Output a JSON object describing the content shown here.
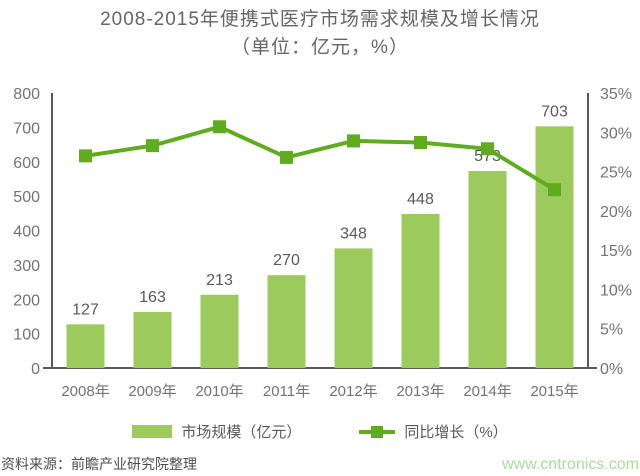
{
  "title": "2008-2015年便携式医疗市场需求规模及增长情况",
  "subtitle": "（单位：亿元，%）",
  "legend": {
    "bar_label": "市场规模（亿元）",
    "line_label": "同比增长（%）"
  },
  "footer": {
    "source": "资料来源：前瞻产业研究院整理",
    "website": "www.cntronics.com"
  },
  "colors": {
    "bar": "#9cca5d",
    "line": "#5fad1f",
    "axis": "#595959",
    "tick_text": "#737373",
    "value_label": "#595959",
    "title_text": "#666666",
    "legend_text": "#595959",
    "source_text": "#4d4d4d",
    "website_text": "#aadc9c"
  },
  "chart_data": {
    "type": "bar",
    "subtype": "bar+line combo, dual axis",
    "title": "2008-2015年便携式医疗市场需求规模及增长情况",
    "subtitle": "（单位：亿元，%）",
    "categories": [
      "2008年",
      "2009年",
      "2010年",
      "2011年",
      "2012年",
      "2013年",
      "2014年",
      "2015年"
    ],
    "series": [
      {
        "name": "市场规模（亿元）",
        "type": "bar",
        "axis": "left",
        "values": [
          127,
          163,
          213,
          270,
          348,
          448,
          573,
          703
        ],
        "value_labels": [
          "127",
          "163",
          "213",
          "270",
          "348",
          "448",
          "573",
          "703"
        ]
      },
      {
        "name": "同比增长（%）",
        "type": "line",
        "axis": "right",
        "values": [
          27.0,
          28.3,
          30.7,
          26.8,
          28.9,
          28.7,
          27.9,
          22.7
        ]
      }
    ],
    "left_axis": {
      "min": 0,
      "max": 800,
      "step": 100,
      "tick_labels": [
        "0",
        "100",
        "200",
        "300",
        "400",
        "500",
        "600",
        "700",
        "800"
      ]
    },
    "right_axis": {
      "min": 0,
      "max": 35,
      "step": 5,
      "tick_labels": [
        "0%",
        "5%",
        "10%",
        "15%",
        "20%",
        "25%",
        "30%",
        "35%"
      ]
    },
    "grid": false,
    "legend_position": "bottom"
  }
}
